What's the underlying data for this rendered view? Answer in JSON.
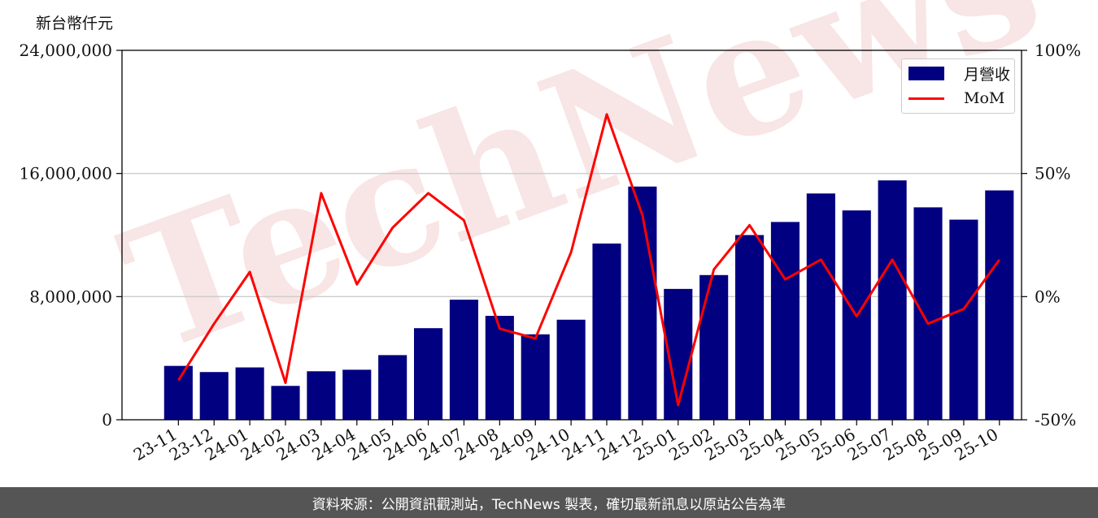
{
  "y_axis_unit": "新台幣仟元",
  "footer_text": "資料來源：公開資訊觀測站，TechNews 製表，確切最新訊息以原站公告為準",
  "watermark": "TechNews",
  "colors": {
    "bar": "#000080",
    "line": "#ff0000",
    "grid": "#cccccc",
    "footer_bg": "#555555",
    "watermark": "#f2d0d0"
  },
  "chart_data": {
    "type": "bar",
    "categories": [
      "23-11",
      "23-12",
      "24-01",
      "24-02",
      "24-03",
      "24-04",
      "24-05",
      "24-06",
      "24-07",
      "24-08",
      "24-09",
      "24-10",
      "24-11",
      "24-12",
      "25-01",
      "25-02",
      "25-03",
      "25-04",
      "25-05",
      "25-06",
      "25-07",
      "25-08",
      "25-09",
      "25-10"
    ],
    "series": [
      {
        "name": "月營收",
        "type": "bar",
        "axis": "left",
        "values": [
          3500000,
          3100000,
          3400000,
          2200000,
          3150000,
          3250000,
          4200000,
          5950000,
          7800000,
          6750000,
          5550000,
          6500000,
          11450000,
          15150000,
          8500000,
          9400000,
          12000000,
          12850000,
          14700000,
          13600000,
          15550000,
          13800000,
          13000000,
          14900000
        ]
      },
      {
        "name": "MoM",
        "type": "line",
        "axis": "right",
        "values": [
          -34,
          -11,
          10,
          -35,
          42,
          5,
          28,
          42,
          31,
          -13,
          -17,
          18,
          74,
          33,
          -44,
          11,
          29,
          7,
          15,
          -8,
          15,
          -11,
          -5,
          15
        ]
      }
    ],
    "left_axis": {
      "ylim": [
        0,
        24000000
      ],
      "ticks": [
        "0",
        "8,000,000",
        "16,000,000",
        "24,000,000"
      ],
      "tick_values": [
        0,
        8000000,
        16000000,
        24000000
      ]
    },
    "right_axis": {
      "ylim": [
        -50,
        100
      ],
      "ticks": [
        "-50%",
        "0%",
        "50%",
        "100%"
      ],
      "tick_values": [
        -50,
        0,
        50,
        100
      ]
    },
    "grid": "horizontal",
    "legend_placement": "top-right"
  }
}
